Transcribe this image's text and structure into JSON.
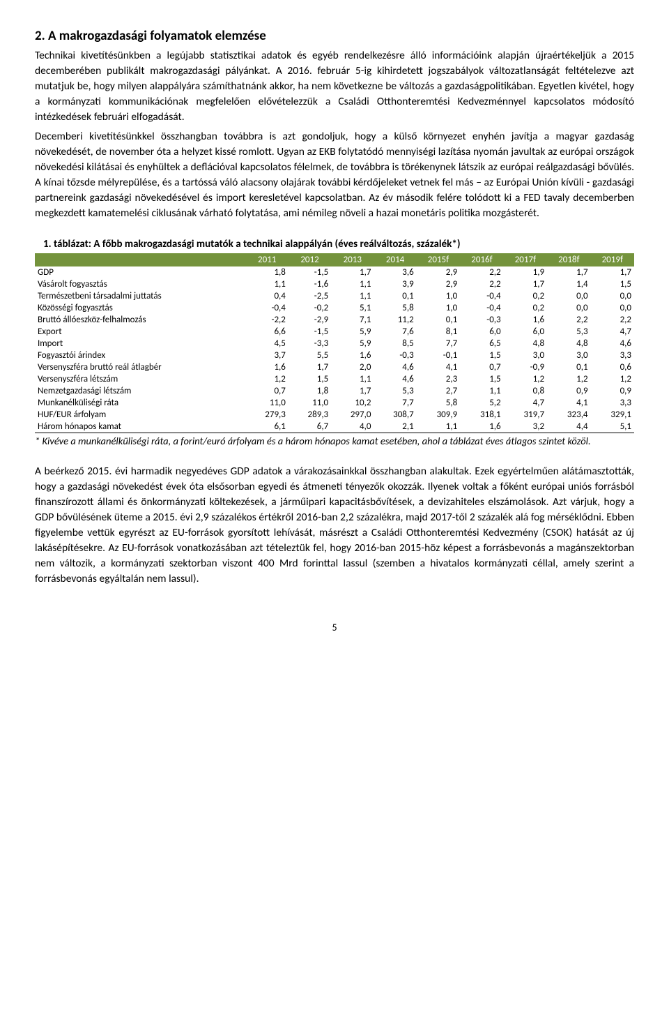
{
  "heading": "2. A makrogazdasági folyamatok elemzése",
  "para1": "Technikai kivetítésünkben a legújabb statisztikai adatok és egyéb rendelkezésre álló információink alapján újraértékeljük a 2015 decemberében publikált makrogazdasági pályánkat. A 2016. február 5-ig kihirdetett jogszabályok változatlanságát feltételezve azt mutatjuk be, hogy milyen alappályára számíthatnánk akkor, ha nem következne be változás a gazdaságpolitikában. Egyetlen kivétel, hogy a kormányzati kommunikációnak megfelelően elővételezzük a Családi Otthonteremtési Kedvezménnyel kapcsolatos módosító intézkedések februári elfogadását.",
  "para2": "Decemberi kivetítésünkkel összhangban továbbra is azt gondoljuk, hogy a külső környezet enyhén javítja a magyar gazdaság növekedését, de november óta a helyzet kissé romlott. Ugyan az EKB folytatódó mennyiségi lazítása nyomán javultak az európai országok növekedési kilátásai és enyhültek a deflációval kapcsolatos félelmek, de továbbra is törékenynek látszik az európai reálgazdasági bővülés. A kínai tőzsde mélyrepülése, és a tartóssá váló alacsony olajárak további kérdőjeleket vetnek fel más – az Európai Unión kívüli - gazdasági partnereink gazdasági növekedésével és import keresletével kapcsolatban. Az év második felére tolódott ki a FED tavaly decemberben megkezdett kamatemelési ciklusának várható folytatása, ami némileg növeli a hazai monetáris politika mozgásterét.",
  "table": {
    "caption": "1.   táblázat: A főbb makrogazdasági mutatók a technikai alappályán (éves reálváltozás, százalék*)",
    "header_bg": "#74933c",
    "header_color": "#ffffff",
    "columns": [
      "",
      "2011",
      "2012",
      "2013",
      "2014",
      "2015f",
      "2016f",
      "2017f",
      "2018f",
      "2019f"
    ],
    "rows": [
      [
        "GDP",
        "1,8",
        "-1,5",
        "1,7",
        "3,6",
        "2,9",
        "2,2",
        "1,9",
        "1,7",
        "1,7"
      ],
      [
        "Vásárolt fogyasztás",
        "1,1",
        "-1,6",
        "1,1",
        "3,9",
        "2,9",
        "2,2",
        "1,7",
        "1,4",
        "1,5"
      ],
      [
        "Természetbeni társadalmi juttatás",
        "0,4",
        "-2,5",
        "1,1",
        "0,1",
        "1,0",
        "-0,4",
        "0,2",
        "0,0",
        "0,0"
      ],
      [
        "Közösségi fogyasztás",
        "-0,4",
        "-0,2",
        "5,1",
        "5,8",
        "1,0",
        "-0,4",
        "0,2",
        "0,0",
        "0,0"
      ],
      [
        "Bruttó állóeszköz-felhalmozás",
        "-2,2",
        "-2,9",
        "7,1",
        "11,2",
        "0,1",
        "-0,3",
        "1,6",
        "2,2",
        "2,2"
      ],
      [
        "Export",
        "6,6",
        "-1,5",
        "5,9",
        "7,6",
        "8,1",
        "6,0",
        "6,0",
        "5,3",
        "4,7"
      ],
      [
        "Import",
        "4,5",
        "-3,3",
        "5,9",
        "8,5",
        "7,7",
        "6,5",
        "4,8",
        "4,8",
        "4,6"
      ],
      [
        "Fogyasztói árindex",
        "3,7",
        "5,5",
        "1,6",
        "-0,3",
        "-0,1",
        "1,5",
        "3,0",
        "3,0",
        "3,3"
      ],
      [
        "Versenyszféra bruttó reál átlagbér",
        "1,6",
        "1,7",
        "2,0",
        "4,6",
        "4,1",
        "0,7",
        "-0,9",
        "0,1",
        "0,6"
      ],
      [
        "Versenyszféra létszám",
        "1,2",
        "1,5",
        "1,1",
        "4,6",
        "2,3",
        "1,5",
        "1,2",
        "1,2",
        "1,2"
      ],
      [
        "Nemzetgazdasági létszám",
        "0,7",
        "1,8",
        "1,7",
        "5,3",
        "2,7",
        "1,1",
        "0,8",
        "0,9",
        "0,9"
      ],
      [
        "Munkanélküliségi ráta",
        "11,0",
        "11,0",
        "10,2",
        "7,7",
        "5,8",
        "5,2",
        "4,7",
        "4,1",
        "3,3"
      ],
      [
        "HUF/EUR árfolyam",
        "279,3",
        "289,3",
        "297,0",
        "308,7",
        "309,9",
        "318,1",
        "319,7",
        "323,4",
        "329,1"
      ],
      [
        "Három hónapos kamat",
        "6,1",
        "6,7",
        "4,0",
        "2,1",
        "1,1",
        "1,6",
        "3,2",
        "4,4",
        "5,1"
      ]
    ]
  },
  "footnote": "* Kivéve a munkanélküliségi ráta, a forint/euró árfolyam és a három hónapos kamat esetében, ahol a táblázat éves átlagos szintet közöl.",
  "para3": "A beérkező 2015. évi harmadik negyedéves GDP adatok a várakozásainkkal összhangban alakultak. Ezek egyértelműen alátámasztották, hogy a gazdasági növekedést évek óta elsősorban egyedi és átmeneti tényezők okozzák. Ilyenek voltak a főként európai uniós forrásból finanszírozott állami és önkormányzati költekezések, a járműipari kapacitásbővítések, a devizahiteles elszámolások. Azt várjuk, hogy a GDP bővülésének üteme a 2015. évi 2,9 százalékos értékről 2016-ban 2,2 százalékra, majd 2017-től 2 százalék alá fog mérséklődni. Ebben figyelembe vettük egyrészt az EU-források gyorsított lehívását, másrészt a Családi Otthonteremtési Kedvezmény (CSOK) hatását az új lakásépítésekre. Az EU-források vonatkozásában azt tételeztük fel, hogy 2016-ban 2015-höz képest a forrásbevonás a magánszektorban nem változik, a kormányzati szektorban viszont 400 Mrd forinttal lassul (szemben a hivatalos kormányzati céllal, amely szerint a forrásbevonás egyáltalán nem lassul).",
  "page_number": "5"
}
